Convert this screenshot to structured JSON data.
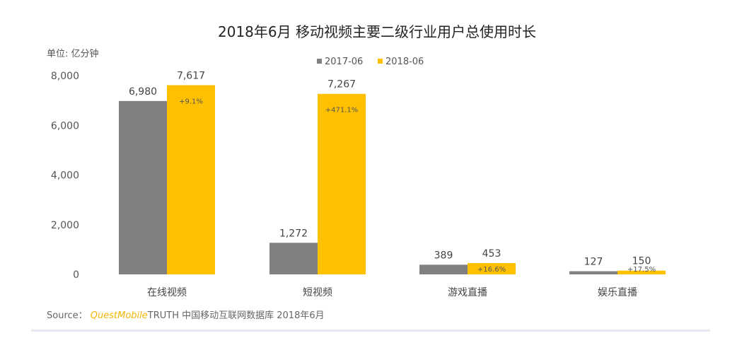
{
  "chart_data": {
    "type": "bar",
    "title": "2018年6月 移动视频主要二级行业用户总使用时长",
    "unit_label": "单位: 亿分钟",
    "categories": [
      "在线视频",
      "短视频",
      "游戏直播",
      "娱乐直播"
    ],
    "series": [
      {
        "name": "2017-06",
        "color": "#808080",
        "values": [
          6980,
          1272,
          389,
          127
        ]
      },
      {
        "name": "2018-06",
        "color": "#ffc000",
        "values": [
          7617,
          7267,
          453,
          150
        ]
      }
    ],
    "value_labels": [
      [
        "6,980",
        "1,272",
        "389",
        "127"
      ],
      [
        "7,617",
        "7,267",
        "453",
        "150"
      ]
    ],
    "growth_labels": [
      "+9.1%",
      "+471.1%",
      "+16.6%",
      "+17.5%"
    ],
    "y_ticks": [
      "0",
      "2,000",
      "4,000",
      "6,000",
      "8,000"
    ],
    "ylim": [
      0,
      8000
    ],
    "legend_position": "top-center",
    "grid": false
  },
  "source": {
    "prefix": "Source：",
    "brand": "QuestMobile",
    "suffix": "TRUTH 中国移动互联网数据库 2018年6月"
  }
}
